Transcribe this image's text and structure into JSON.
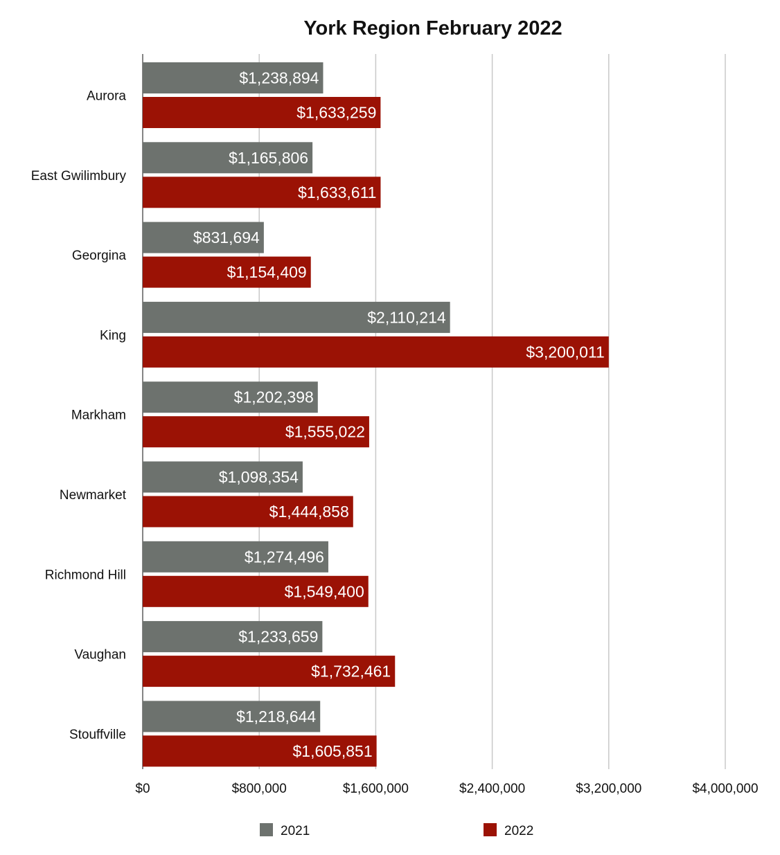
{
  "chart_data": {
    "type": "bar",
    "orientation": "horizontal",
    "title": "York Region February 2022",
    "xlabel": "",
    "ylabel": "",
    "xlim": [
      0,
      4000000
    ],
    "x_ticks": [
      0,
      800000,
      1600000,
      2400000,
      3200000,
      4000000
    ],
    "x_tick_labels": [
      "$0",
      "$800,000",
      "$1,600,000",
      "$2,400,000",
      "$3,200,000",
      "$4,000,000"
    ],
    "grid": "vertical",
    "legend_position": "bottom",
    "categories": [
      "Aurora",
      "East Gwilimbury",
      "Georgina",
      "King",
      "Markham",
      "Newmarket",
      "Richmond Hill",
      "Vaughan",
      "Stouffville"
    ],
    "series": [
      {
        "name": "2021",
        "color": "#6d726e",
        "values": [
          1238894,
          1165806,
          831694,
          2110214,
          1202398,
          1098354,
          1274496,
          1233659,
          1218644
        ],
        "labels": [
          "$1,238,894",
          "$1,165,806",
          "$831,694",
          "$2,110,214",
          "$1,202,398",
          "$1,098,354",
          "$1,274,496",
          "$1,233,659",
          "$1,218,644"
        ]
      },
      {
        "name": "2022",
        "color": "#9b1205",
        "values": [
          1633259,
          1633611,
          1154409,
          3200011,
          1555022,
          1444858,
          1549400,
          1732461,
          1605851
        ],
        "labels": [
          "$1,633,259",
          "$1,633,611",
          "$1,154,409",
          "$3,200,011",
          "$1,555,022",
          "$1,444,858",
          "$1,549,400",
          "$1,732,461",
          "$1,605,851"
        ]
      }
    ]
  }
}
